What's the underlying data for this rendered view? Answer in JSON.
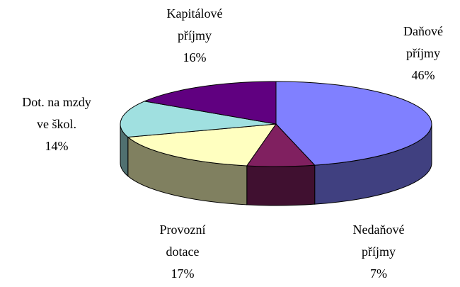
{
  "chart_data": {
    "type": "pie3d",
    "categories": [
      "Daňové příjmy",
      "Nedaňové příjmy",
      "Provozní dotace",
      "Dot. na mzdy ve škol.",
      "Kapitálové příjmy"
    ],
    "values": [
      46,
      7,
      17,
      14,
      16
    ],
    "value_labels": [
      "46%",
      "7%",
      "17%",
      "14%",
      "16%"
    ],
    "colors": [
      "#8080ff",
      "#802060",
      "#ffffc0",
      "#a0e0e0",
      "#600080"
    ]
  }
}
